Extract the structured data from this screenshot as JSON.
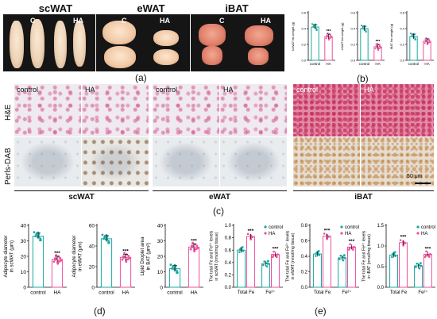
{
  "photos": {
    "titles": [
      "scWAT",
      "eWAT",
      "iBAT"
    ],
    "tags": [
      "C",
      "HA"
    ],
    "panel": "(a)"
  },
  "panel_b": "(b)",
  "histology": {
    "row_labels": [
      "H&E",
      "Perls-DAB"
    ],
    "cell_labels": [
      "control",
      "HA",
      "control",
      "HA",
      "control",
      "HA"
    ],
    "group_labels": [
      "scWAT",
      "eWAT",
      "iBAT"
    ],
    "scale": "50 μm",
    "panel": "(c)"
  },
  "panel_d": "(d)",
  "panel_e": "(e)",
  "colors": {
    "control": "#17a9a1",
    "HA": "#ef4f9c"
  },
  "chart_data": [
    {
      "id": "b1",
      "type": "bar",
      "ylabel": "scWAT fat weight (g)",
      "categories": [
        "control",
        "HA"
      ],
      "values": [
        0.42,
        0.3
      ],
      "ylim": [
        0,
        0.6
      ],
      "yticks": [
        "0.0",
        "0.2",
        "0.4",
        "0.6"
      ],
      "sig": "***"
    },
    {
      "id": "b2",
      "type": "bar",
      "ylabel": "eWAT fat weight (g)",
      "categories": [
        "control",
        "HA"
      ],
      "values": [
        0.4,
        0.17
      ],
      "ylim": [
        0,
        0.6
      ],
      "yticks": [
        "0.0",
        "0.2",
        "0.4",
        "0.6"
      ],
      "sig": "***"
    },
    {
      "id": "b3",
      "type": "bar",
      "ylabel": "iBAT fat weight (g)",
      "categories": [
        "control",
        "HA"
      ],
      "values": [
        0.3,
        0.24
      ],
      "ylim": [
        0,
        0.6
      ],
      "yticks": [
        "0.0",
        "0.2",
        "0.4",
        "0.6"
      ],
      "sig": ""
    },
    {
      "id": "d1",
      "type": "bar",
      "ylabel": "Adipocyte diameter in scWAT (μm)",
      "categories": [
        "control",
        "HA"
      ],
      "values": [
        33,
        18
      ],
      "ylim": [
        0,
        40
      ],
      "yticks": [
        "0",
        "10",
        "20",
        "30",
        "40"
      ],
      "sig": "***"
    },
    {
      "id": "d2",
      "type": "bar",
      "ylabel": "Adipocyte diameter in eWAT (μm)",
      "categories": [
        "control",
        "HA"
      ],
      "values": [
        47,
        29
      ],
      "ylim": [
        0,
        60
      ],
      "yticks": [
        "0",
        "20",
        "40",
        "60"
      ],
      "sig": "***"
    },
    {
      "id": "d3",
      "type": "bar",
      "ylabel": "Lipid Droplet area in BAT (μm²)",
      "categories": [
        "control",
        "HA"
      ],
      "values": [
        12,
        26
      ],
      "ylim": [
        0,
        40
      ],
      "yticks": [
        "0",
        "10",
        "20",
        "30",
        "40"
      ],
      "sig": "***"
    },
    {
      "id": "e1",
      "type": "bar",
      "ylabel": "The total Fe and Fe²⁺ levels in scWAT (nmol/mg tissue)",
      "categories": [
        "Total Fe",
        "Fe²⁺"
      ],
      "series": [
        {
          "name": "control",
          "values": [
            0.6,
            0.38
          ]
        },
        {
          "name": "HA",
          "values": [
            0.82,
            0.53
          ]
        }
      ],
      "ylim": [
        0,
        1.0
      ],
      "yticks": [
        "0.0",
        "0.2",
        "0.4",
        "0.6",
        "0.8",
        "1.0"
      ],
      "sig": [
        "***",
        "***"
      ],
      "legend": "top-right"
    },
    {
      "id": "e2",
      "type": "bar",
      "ylabel": "The total Fe and Fe²⁺ levels in eWAT (nmol/mg tissue)",
      "categories": [
        "Total Fe",
        "Fe²⁺"
      ],
      "series": [
        {
          "name": "control",
          "values": [
            0.43,
            0.38
          ]
        },
        {
          "name": "HA",
          "values": [
            0.66,
            0.52
          ]
        }
      ],
      "ylim": [
        0,
        0.8
      ],
      "yticks": [
        "0.0",
        "0.2",
        "0.4",
        "0.6",
        "0.8"
      ],
      "sig": [
        "***",
        "***"
      ],
      "legend": "top-right"
    },
    {
      "id": "e3",
      "type": "bar",
      "ylabel": "The total Fe and Fe²⁺ levels in iBAT (nmol/mg tissue)",
      "categories": [
        "Total Fe",
        "Fe²⁺"
      ],
      "series": [
        {
          "name": "control",
          "values": [
            0.78,
            0.52
          ]
        },
        {
          "name": "HA",
          "values": [
            1.08,
            0.8
          ]
        }
      ],
      "ylim": [
        0,
        1.5
      ],
      "yticks": [
        "0.0",
        "0.5",
        "1.0",
        "1.5"
      ],
      "sig": [
        "***",
        "***"
      ],
      "legend": "top-right"
    }
  ]
}
